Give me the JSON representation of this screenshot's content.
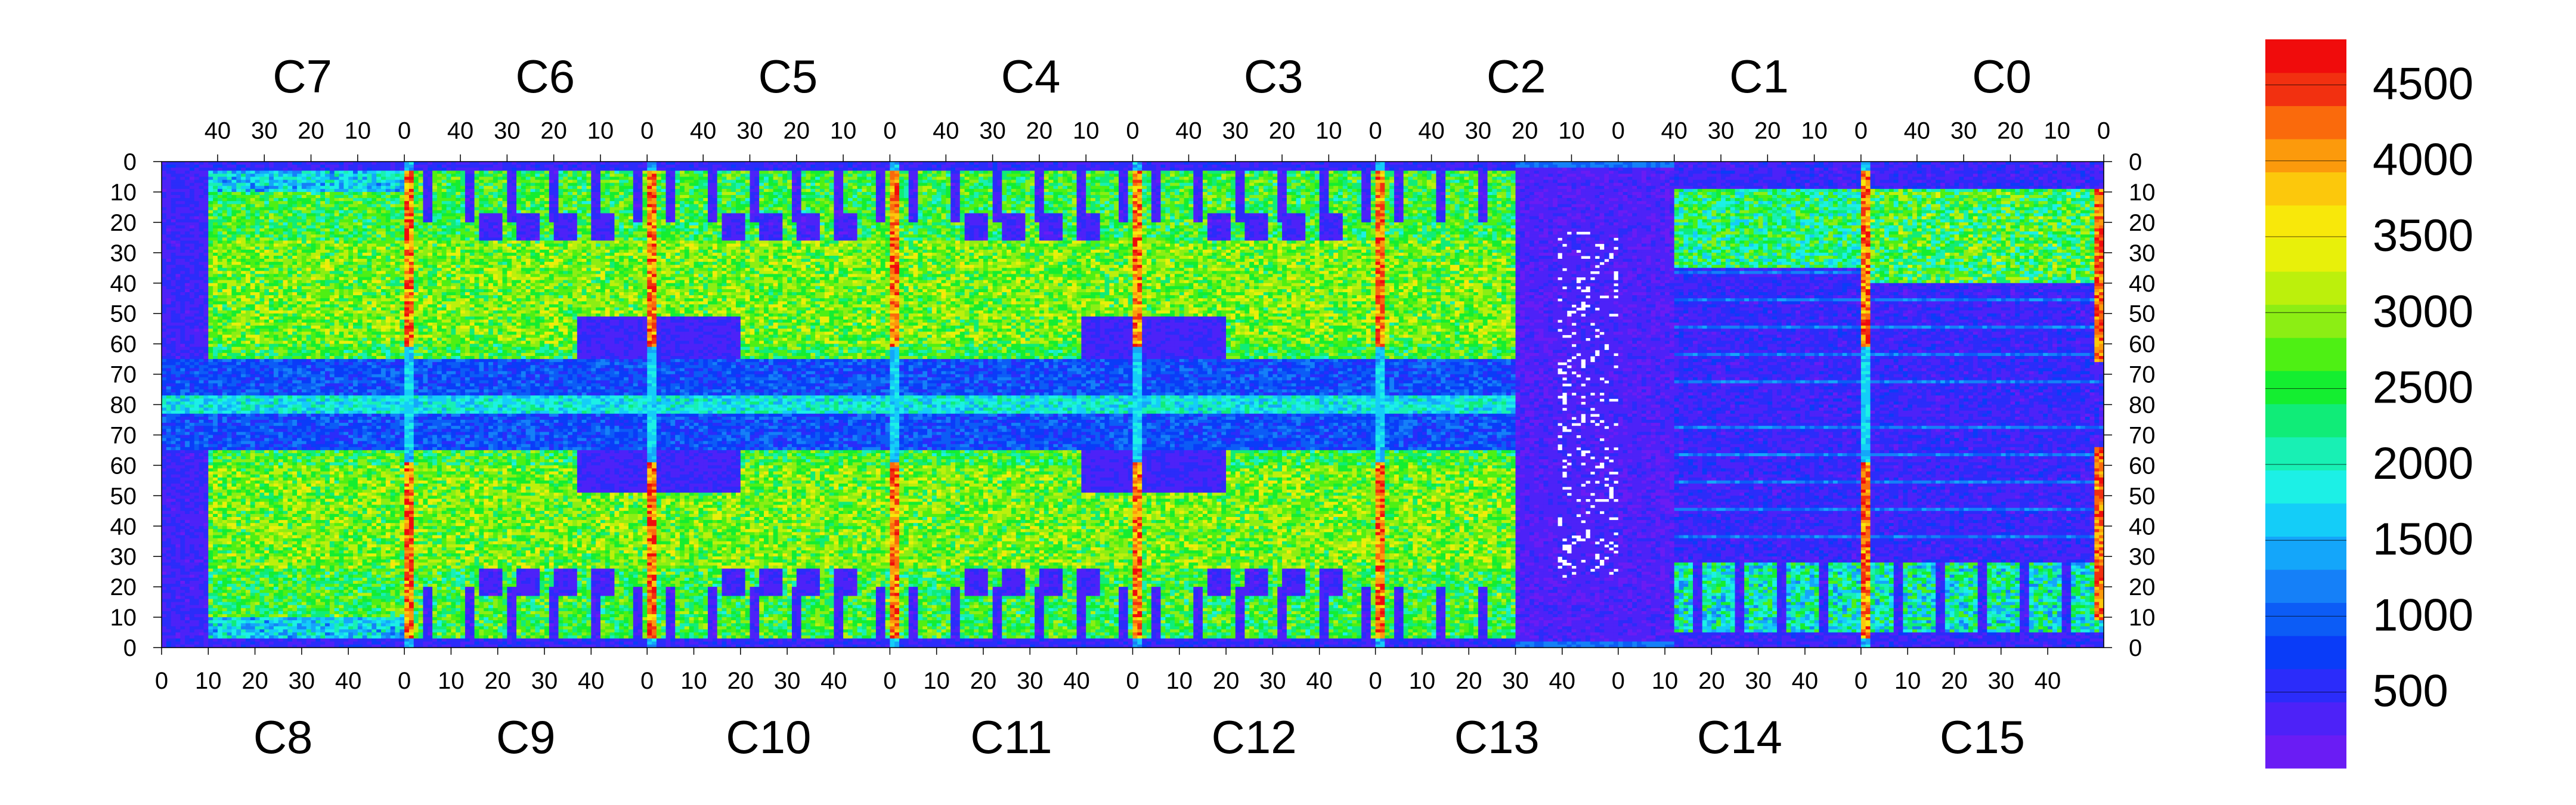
{
  "chart_data": {
    "type": "heatmap",
    "top_chip_labels": [
      "C7",
      "C6",
      "C5",
      "C4",
      "C3",
      "C2",
      "C1",
      "C0"
    ],
    "bottom_chip_labels": [
      "C8",
      "C9",
      "C10",
      "C11",
      "C12",
      "C13",
      "C14",
      "C15"
    ],
    "top_x_ticks": [
      "40",
      "30",
      "20",
      "10",
      "0"
    ],
    "bottom_x_ticks": [
      "0",
      "10",
      "20",
      "30",
      "40"
    ],
    "y_ticks": [
      "0",
      "10",
      "20",
      "30",
      "40",
      "50",
      "60",
      "70",
      "80",
      "70",
      "60",
      "50",
      "40",
      "30",
      "20",
      "10",
      "0"
    ],
    "colorbar": {
      "range": [
        0,
        4800
      ],
      "tick_values": [
        500,
        1000,
        1500,
        2000,
        2500,
        3000,
        3500,
        4000,
        4500
      ],
      "tick_labels": [
        "500",
        "1000",
        "1500",
        "2000",
        "2500",
        "3000",
        "3500",
        "4000",
        "4500"
      ],
      "colors": [
        "#6a1cf4",
        "#4d22f8",
        "#2b2cfa",
        "#0a3cf8",
        "#0c5cf6",
        "#1580f8",
        "#14a6fa",
        "#14cdf8",
        "#1cf0e6",
        "#18f0b4",
        "#10ec78",
        "#14ee30",
        "#4ef014",
        "#8cee14",
        "#bcf00c",
        "#e8f00a",
        "#f8e80a",
        "#fcc80c",
        "#fc9a0c",
        "#fa6a0c",
        "#f23010",
        "#f00c0c"
      ]
    },
    "summary": {
      "chips": 16,
      "columns_per_chip": 52,
      "rows_per_half": 80,
      "high_value_columns": "chip-boundary columns (col 0 of each chip) reach 4000-4800",
      "typical_plateau": "2000-3200 in rows 10-60",
      "low_band": "rows 65-80 about 300-1200",
      "low_region": "C13/C14 area (top C2/C1) mostly below 500 with white empty cells"
    }
  }
}
